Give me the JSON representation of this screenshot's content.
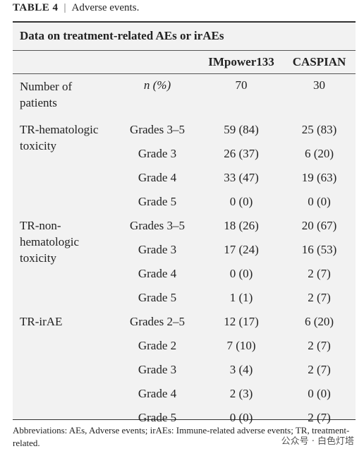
{
  "caption": {
    "label": "TABLE 4",
    "title": "Adverse events."
  },
  "table": {
    "title": "Data on treatment-related AEs or irAEs",
    "columns": [
      "IMpower133",
      "CASPIAN"
    ],
    "groups": [
      {
        "label": "Number of patients",
        "rows": [
          {
            "sub": "n (%)",
            "values": [
              "70",
              "30"
            ]
          }
        ]
      },
      {
        "label": "TR-hematologic toxicity",
        "rows": [
          {
            "sub": "Grades 3–5",
            "values": [
              "59 (84)",
              "25 (83)"
            ]
          },
          {
            "sub": "Grade 3",
            "values": [
              "26 (37)",
              "6 (20)"
            ]
          },
          {
            "sub": "Grade 4",
            "values": [
              "33 (47)",
              "19 (63)"
            ]
          },
          {
            "sub": "Grade 5",
            "values": [
              "0 (0)",
              "0 (0)"
            ]
          }
        ]
      },
      {
        "label": "TR-non-hematologic toxicity",
        "rows": [
          {
            "sub": "Grades 3–5",
            "values": [
              "18 (26)",
              "20 (67)"
            ]
          },
          {
            "sub": "Grade 3",
            "values": [
              "17 (24)",
              "16 (53)"
            ]
          },
          {
            "sub": "Grade 4",
            "values": [
              "0 (0)",
              "2 (7)"
            ]
          },
          {
            "sub": "Grade 5",
            "values": [
              "1 (1)",
              "2 (7)"
            ]
          }
        ]
      },
      {
        "label": "TR-irAE",
        "rows": [
          {
            "sub": "Grades 2–5",
            "values": [
              "12 (17)",
              "6 (20)"
            ]
          },
          {
            "sub": "Grade 2",
            "values": [
              "7 (10)",
              "2 (7)"
            ]
          },
          {
            "sub": "Grade 3",
            "values": [
              "3 (4)",
              "2 (7)"
            ]
          },
          {
            "sub": "Grade 4",
            "values": [
              "2 (3)",
              "0 (0)"
            ]
          },
          {
            "sub": "Grade 5",
            "values": [
              "0 (0)",
              "2 (7)"
            ]
          }
        ]
      }
    ]
  },
  "footnote": "Abbreviations: AEs, Adverse events; irAEs: Immune-related adverse events; TR, treatment-related.",
  "watermark": "公众号 · 白色灯塔"
}
